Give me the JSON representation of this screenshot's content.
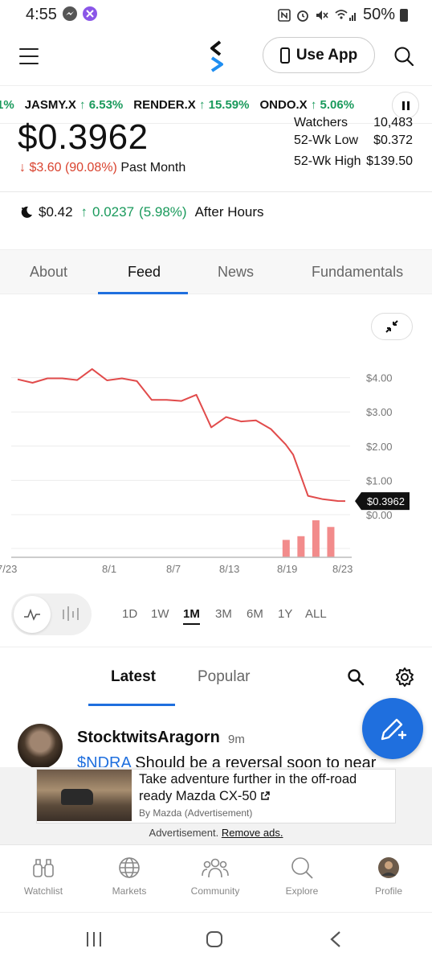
{
  "status_bar": {
    "time": "4:55",
    "battery": "50%"
  },
  "header": {
    "use_app_label": "Use App"
  },
  "ticker": [
    {
      "symbol": "",
      "change": "1%"
    },
    {
      "symbol": "JASMY.X",
      "change": "↑ 6.53%"
    },
    {
      "symbol": "RENDER.X",
      "change": "↑ 15.59%"
    },
    {
      "symbol": "ONDO.X",
      "change": "↑ 5.06%"
    }
  ],
  "quote": {
    "price": "$0.3962",
    "change_amount": "$3.60",
    "change_percent": "(90.08%)",
    "change_period": "Past Month",
    "stats": [
      {
        "label": "Watchers",
        "value": "10,483"
      },
      {
        "label": "52-Wk Low",
        "value": "$0.372"
      },
      {
        "label": "52-Wk High",
        "value": "$139.50"
      }
    ],
    "after_hours": {
      "price": "$0.42",
      "change": "0.0237",
      "percent": "(5.98%)",
      "label": "After Hours"
    }
  },
  "tabs": [
    {
      "label": "About",
      "active": false
    },
    {
      "label": "Feed",
      "active": true
    },
    {
      "label": "News",
      "active": false
    },
    {
      "label": "Fundamentals",
      "active": false
    }
  ],
  "chart_data": {
    "type": "line",
    "title": "",
    "xlabel": "",
    "ylabel": "",
    "x_tick_labels": [
      "7/23",
      "8/1",
      "8/7",
      "8/13",
      "8/19",
      "8/23"
    ],
    "y_tick_labels": [
      "$4.00",
      "$3.00",
      "$2.00",
      "$1.00",
      "$0.00"
    ],
    "ylim": [
      0,
      4.6
    ],
    "current_price_label": "$0.3962",
    "line_color": "#e14b4b",
    "volume_color": "#f28b8b",
    "series": [
      {
        "values": [
          [
            0,
            3.95
          ],
          [
            2,
            3.85
          ],
          [
            4,
            3.98
          ],
          [
            6,
            3.98
          ],
          [
            8,
            3.93
          ],
          [
            10,
            4.25
          ],
          [
            12,
            3.92
          ],
          [
            14,
            3.98
          ],
          [
            16,
            3.9
          ],
          [
            18,
            3.35
          ],
          [
            20,
            3.35
          ],
          [
            22,
            3.32
          ],
          [
            24,
            3.5
          ],
          [
            26,
            2.55
          ],
          [
            28,
            2.85
          ],
          [
            30,
            2.72
          ],
          [
            32,
            2.75
          ],
          [
            34,
            2.5
          ],
          [
            36,
            2.05
          ],
          [
            37,
            1.75
          ],
          [
            38,
            1.15
          ],
          [
            39,
            0.55
          ],
          [
            41,
            0.45
          ],
          [
            43,
            0.4
          ],
          [
            44,
            0.3962
          ]
        ]
      }
    ],
    "volume_relative": [
      [
        36,
        0.47
      ],
      [
        38,
        0.57
      ],
      [
        40,
        1.0
      ],
      [
        42,
        0.82
      ]
    ]
  },
  "ranges": [
    {
      "label": "1D",
      "active": false
    },
    {
      "label": "1W",
      "active": false
    },
    {
      "label": "1M",
      "active": true
    },
    {
      "label": "3M",
      "active": false
    },
    {
      "label": "6M",
      "active": false
    },
    {
      "label": "1Y",
      "active": false
    },
    {
      "label": "ALL",
      "active": false
    }
  ],
  "feed_tabs": [
    {
      "label": "Latest",
      "active": true
    },
    {
      "label": "Popular",
      "active": false
    }
  ],
  "post": {
    "username": "StocktwitsAragorn",
    "time": "9m",
    "cashtag": "$NDRA",
    "text": " Should be a reversal soon to near"
  },
  "ad": {
    "title": "Take adventure further in the off-road ready Mazda CX-50",
    "by": "By Mazda (Advertisement)",
    "label": "Advertisement.",
    "remove": "Remove ads."
  },
  "bottom_nav": [
    {
      "label": "Watchlist",
      "icon": "binoculars-icon"
    },
    {
      "label": "Markets",
      "icon": "globe-icon"
    },
    {
      "label": "Community",
      "icon": "people-icon"
    },
    {
      "label": "Explore",
      "icon": "search-icon"
    },
    {
      "label": "Profile",
      "icon": "avatar-icon"
    }
  ]
}
